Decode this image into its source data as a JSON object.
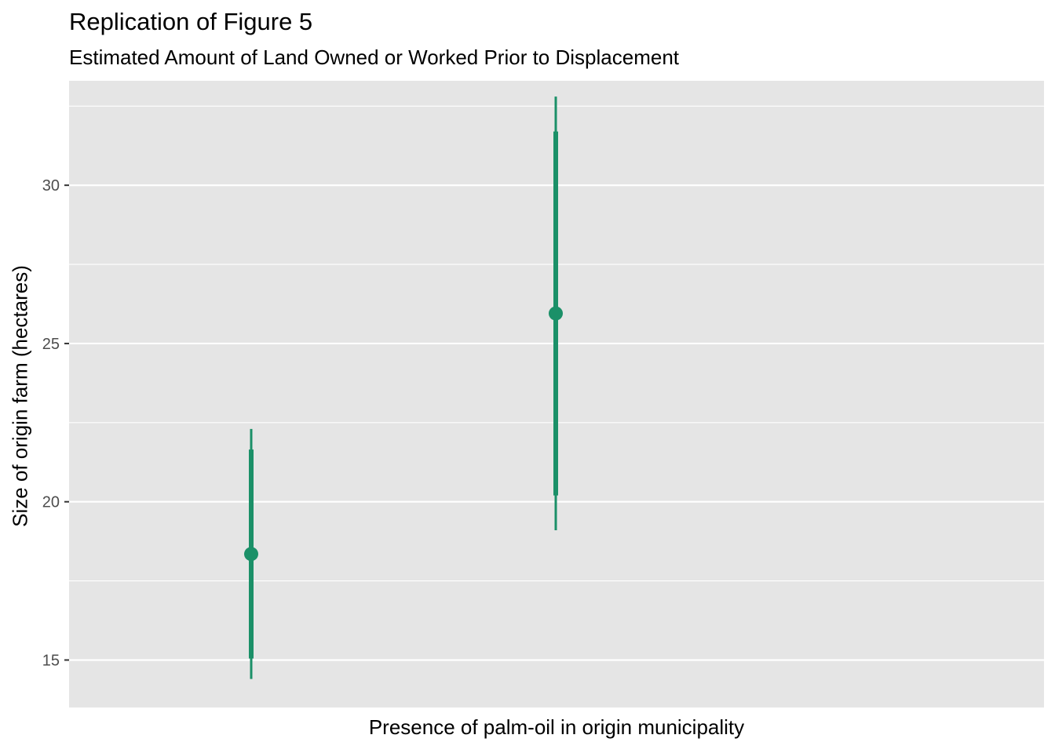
{
  "chart_data": {
    "type": "pointrange",
    "title": "Replication of Figure 5",
    "subtitle": "Estimated Amount of Land Owned or Worked Prior to Displacement",
    "xlabel": "Presence of palm-oil in origin municipality",
    "ylabel": "Size of origin farm (hectares)",
    "ylim": [
      13.5,
      33.3
    ],
    "y_ticks": [
      15,
      20,
      25,
      30
    ],
    "y_tick_labels": [
      "15",
      "20",
      "25",
      "30"
    ],
    "x_ticks_shown": false,
    "grid": true,
    "legend": "none",
    "color": "#1b9068",
    "background": "#e5e5e5",
    "points": [
      {
        "estimate": 18.35,
        "inner": [
          15.05,
          21.65
        ],
        "outer": [
          14.4,
          22.3
        ]
      },
      {
        "estimate": 25.95,
        "inner": [
          20.2,
          31.7
        ],
        "outer": [
          19.1,
          32.8
        ]
      }
    ]
  }
}
